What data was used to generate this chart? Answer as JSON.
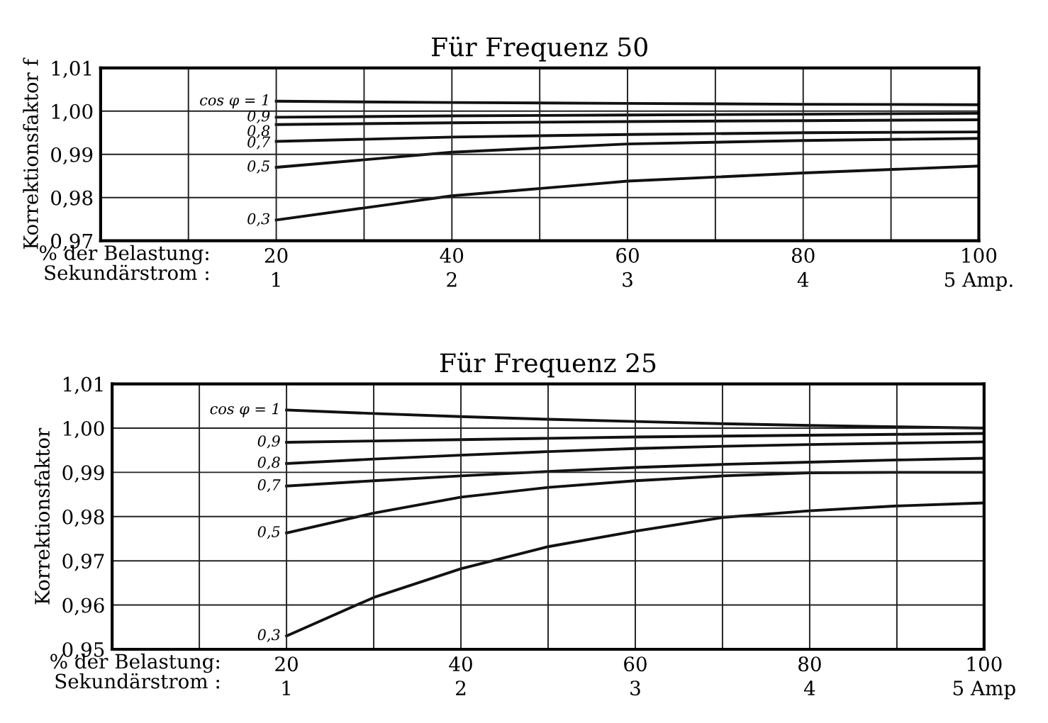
{
  "chart_data": [
    {
      "type": "line",
      "title": "Für Frequenz 50",
      "ylabel": "Korrektionsfaktor f",
      "xlabel": "% der Belastung:",
      "x2label": "Sekundärstrom :",
      "x": [
        20,
        40,
        60,
        80,
        100
      ],
      "series": [
        {
          "name": "cos φ = 1",
          "color": "#111111",
          "values": [
            1.0023,
            1.002,
            1.0018,
            1.0016,
            1.0015
          ]
        },
        {
          "name": "0,9",
          "color": "#111111",
          "values": [
            0.9986,
            0.9989,
            0.9991,
            0.9993,
            0.9995
          ]
        },
        {
          "name": "0,8",
          "color": "#111111",
          "values": [
            0.9969,
            0.9973,
            0.9976,
            0.9978,
            0.998
          ]
        },
        {
          "name": "0,7",
          "color": "#111111",
          "values": [
            0.993,
            0.994,
            0.9946,
            0.995,
            0.9952
          ]
        },
        {
          "name": "0,5",
          "color": "#111111",
          "values": [
            0.987,
            0.9905,
            0.9924,
            0.9932,
            0.9937
          ]
        },
        {
          "name": "0,3",
          "color": "#111111",
          "values": [
            0.9748,
            0.9804,
            0.9838,
            0.9857,
            0.9873
          ]
        }
      ],
      "xlim": [
        0,
        100
      ],
      "xticks": [
        20,
        40,
        60,
        80,
        100
      ],
      "x2lim": [
        0,
        5
      ],
      "x2ticks": [
        1,
        2,
        3,
        4,
        {
          "value": 5,
          "label": "5 Amp."
        }
      ],
      "ylim": [
        0.97,
        1.01
      ],
      "yticks": [
        {
          "value": 0.97,
          "label": "0,97"
        },
        {
          "value": 0.98,
          "label": "0,98"
        },
        {
          "value": 0.99,
          "label": "0,99"
        },
        {
          "value": 1.0,
          "label": "1,00"
        },
        {
          "value": 1.01,
          "label": "1,01"
        }
      ],
      "grid": true,
      "legend": false,
      "line_style": "solid",
      "marker": "none"
    },
    {
      "type": "line",
      "title": "Für Frequenz 25",
      "ylabel": "Korrektionsfaktor",
      "xlabel": "% der Belastung:",
      "x2label": "Sekundärstrom :",
      "x": [
        20,
        30,
        40,
        50,
        60,
        70,
        80,
        90,
        100
      ],
      "series": [
        {
          "name": "cos φ = 1",
          "color": "#111111",
          "values": [
            1.0041,
            1.0033,
            1.0026,
            1.002,
            1.0015,
            1.001,
            1.0006,
            1.0003,
            1.0
          ]
        },
        {
          "name": "0,9",
          "color": "#111111",
          "values": [
            0.9968,
            0.9971,
            0.9974,
            0.9977,
            0.998,
            0.9982,
            0.9984,
            0.9986,
            0.9988
          ]
        },
        {
          "name": "0,8",
          "color": "#111111",
          "values": [
            0.992,
            0.993,
            0.9939,
            0.9947,
            0.9954,
            0.9959,
            0.9963,
            0.9966,
            0.9969
          ]
        },
        {
          "name": "0,7",
          "color": "#111111",
          "values": [
            0.9869,
            0.9881,
            0.9892,
            0.9902,
            0.9911,
            0.9918,
            0.9923,
            0.9928,
            0.9932
          ]
        },
        {
          "name": "0,5",
          "color": "#111111",
          "values": [
            0.9763,
            0.9808,
            0.9844,
            0.9866,
            0.9881,
            0.9892,
            0.9899,
            0.99,
            0.99
          ]
        },
        {
          "name": "0,3",
          "color": "#111111",
          "values": [
            0.953,
            0.9617,
            0.9682,
            0.9732,
            0.9767,
            0.9798,
            0.9813,
            0.9824,
            0.9831
          ]
        }
      ],
      "xlim": [
        0,
        100
      ],
      "xticks": [
        20,
        40,
        60,
        80,
        100
      ],
      "x2lim": [
        0,
        5
      ],
      "x2ticks": [
        1,
        2,
        3,
        4,
        {
          "value": 5,
          "label": "5 Amp"
        }
      ],
      "ylim": [
        0.95,
        1.01
      ],
      "yticks": [
        {
          "value": 0.95,
          "label": "0,95"
        },
        {
          "value": 0.96,
          "label": "0,96"
        },
        {
          "value": 0.97,
          "label": "0,97"
        },
        {
          "value": 0.98,
          "label": "0,98"
        },
        {
          "value": 0.99,
          "label": "0,99"
        },
        {
          "value": 1.0,
          "label": "1,00"
        },
        {
          "value": 1.01,
          "label": "1,01"
        }
      ],
      "grid": true,
      "legend": false,
      "line_style": "solid",
      "marker": "none"
    }
  ]
}
